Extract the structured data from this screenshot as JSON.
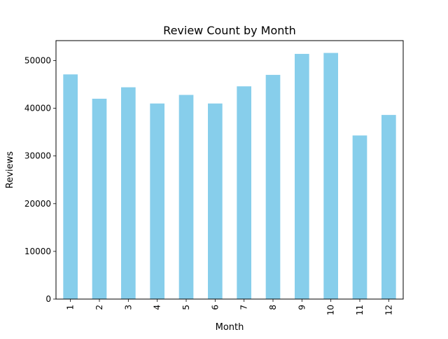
{
  "chart_data": {
    "type": "bar",
    "title": "Review Count by Month",
    "xlabel": "Month",
    "ylabel": "Reviews",
    "categories": [
      "1",
      "2",
      "3",
      "4",
      "5",
      "6",
      "7",
      "8",
      "9",
      "10",
      "11",
      "12"
    ],
    "values": [
      47100,
      42000,
      44400,
      41000,
      42800,
      41000,
      44600,
      47000,
      51400,
      51600,
      34300,
      38600
    ],
    "ylim": [
      0,
      54180
    ],
    "yticks": [
      0,
      10000,
      20000,
      30000,
      40000,
      50000
    ],
    "ytick_labels": [
      "0",
      "10000",
      "20000",
      "30000",
      "40000",
      "50000"
    ],
    "bar_color": "#87CEEB",
    "grid": false,
    "legend": "none",
    "xtick_rotation": "vertical"
  }
}
